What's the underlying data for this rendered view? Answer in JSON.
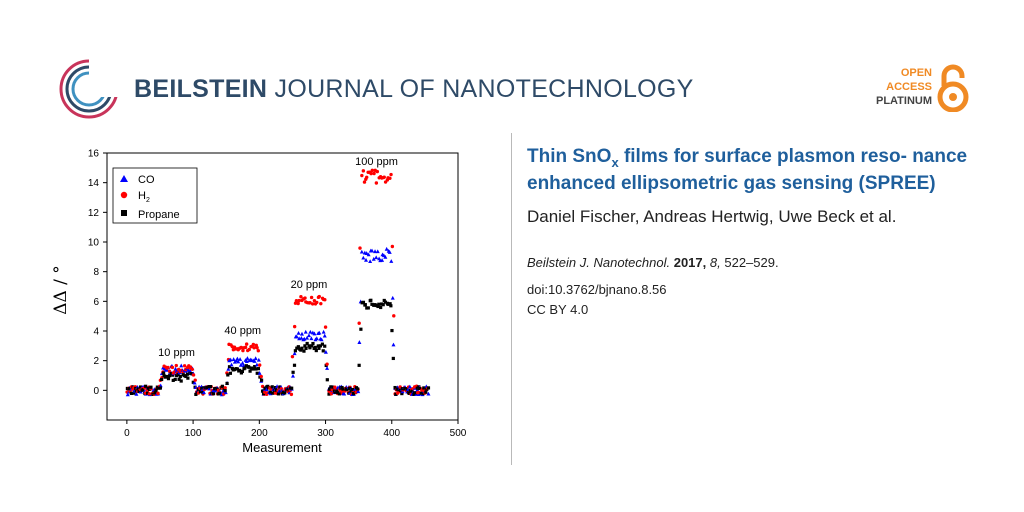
{
  "journal": {
    "name_bold": "BEILSTEIN",
    "name_rest": "JOURNAL OF NANOTECHNOLOGY"
  },
  "open_access": {
    "line1": "OPEN",
    "line2": "ACCESS",
    "line3": "PLATINUM"
  },
  "colors": {
    "accent_blue": "#1f5f9c",
    "brand_navy": "#2e4a67",
    "oa_orange": "#f08a24",
    "co": "#0000ff",
    "h2": "#ff0000",
    "propane": "#000000"
  },
  "article": {
    "title_part1": "Thin SnO",
    "title_sub": "x",
    "title_part2": " films for surface plasmon reso- nance enhanced ellipsometric gas sensing (SPREE)",
    "authors": "Daniel Fischer, Andreas Hertwig, Uwe Beck et al.",
    "journal_abbrev": "Beilstein J. Nanotechnol.",
    "year": "2017,",
    "volume": "8,",
    "pages": "522–529.",
    "doi": "doi:10.3762/bjnano.8.56",
    "license": "CC BY 4.0"
  },
  "chart_data": {
    "type": "scatter",
    "xlabel": "Measurement",
    "ylabel": "ΔΔ / °",
    "xlim": [
      -30,
      500
    ],
    "ylim": [
      -2,
      16
    ],
    "xticks": [
      0,
      100,
      200,
      300,
      400,
      500
    ],
    "yticks": [
      0,
      2,
      4,
      6,
      8,
      10,
      12,
      14,
      16
    ],
    "legend_position": "top-left",
    "legend": [
      {
        "label": "CO",
        "marker": "triangle"
      },
      {
        "label": "H",
        "label_sub": "2",
        "marker": "circle"
      },
      {
        "label": "Propane",
        "marker": "square"
      }
    ],
    "annotations": [
      {
        "text": "10 ppm",
        "x": 75,
        "y": 2.3
      },
      {
        "text": "40 ppm",
        "x": 175,
        "y": 3.8
      },
      {
        "text": "20 ppm",
        "x": 275,
        "y": 6.9
      },
      {
        "text": "100 ppm",
        "x": 377,
        "y": 15.2
      }
    ],
    "segments": [
      {
        "x_start": 0,
        "x_end": 50,
        "co": 0.0,
        "h2": 0.0,
        "propane": 0.0
      },
      {
        "x_start": 50,
        "x_end": 100,
        "co": 1.4,
        "h2": 1.4,
        "propane": 0.9
      },
      {
        "x_start": 100,
        "x_end": 150,
        "co": 0.0,
        "h2": 0.0,
        "propane": 0.0
      },
      {
        "x_start": 150,
        "x_end": 200,
        "co": 1.9,
        "h2": 2.9,
        "propane": 1.4
      },
      {
        "x_start": 200,
        "x_end": 250,
        "co": 0.0,
        "h2": 0.0,
        "propane": 0.0
      },
      {
        "x_start": 250,
        "x_end": 300,
        "co": 3.7,
        "h2": 6.1,
        "propane": 2.9
      },
      {
        "x_start": 300,
        "x_end": 350,
        "co": 0.0,
        "h2": 0.0,
        "propane": 0.0
      },
      {
        "x_start": 350,
        "x_end": 400,
        "co": 9.1,
        "h2": 14.4,
        "propane": 5.8
      },
      {
        "x_start": 400,
        "x_end": 455,
        "co": 0.0,
        "h2": 0.0,
        "propane": 0.0
      }
    ],
    "series": [
      {
        "name": "CO",
        "color": "#0000ff"
      },
      {
        "name": "H2",
        "color": "#ff0000"
      },
      {
        "name": "Propane",
        "color": "#000000"
      }
    ]
  }
}
